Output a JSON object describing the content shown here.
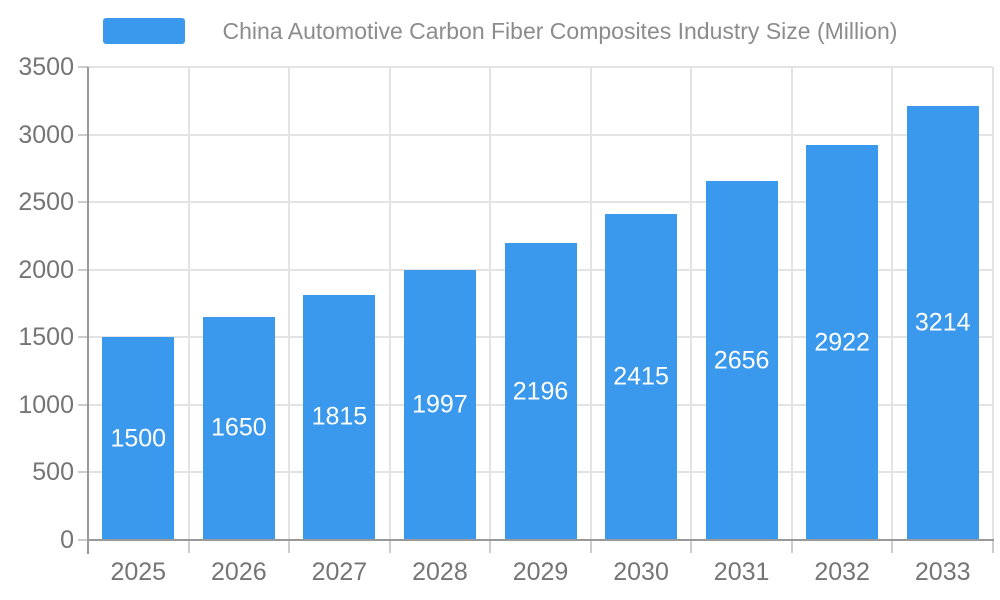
{
  "legend": {
    "label": "China Automotive Carbon Fiber Composites Industry Size (Million)"
  },
  "chart_data": {
    "type": "bar",
    "title": "",
    "categories": [
      "2025",
      "2026",
      "2027",
      "2028",
      "2029",
      "2030",
      "2031",
      "2032",
      "2033"
    ],
    "values": [
      1500,
      1650,
      1815,
      1997,
      2196,
      2415,
      2656,
      2922,
      3214
    ],
    "xlabel": "",
    "ylabel": "",
    "ylim": [
      0,
      3500
    ],
    "yticks": [
      0,
      500,
      1000,
      1500,
      2000,
      2500,
      3000,
      3500
    ],
    "grid": true,
    "legend_entries": [
      "China Automotive Carbon Fiber Composites Industry Size (Million)"
    ],
    "legend_position": "top-center",
    "value_label_position": "inside-center"
  },
  "colors": {
    "bar": "#3A99EC",
    "value_label": "#FFFFFF",
    "axis_text": "#757575",
    "legend_text": "#8C8C8C",
    "gridline": "#E3E3E3",
    "axis_line": "#999999",
    "tick": "#CCCCCC",
    "background": "#FFFFFF"
  }
}
